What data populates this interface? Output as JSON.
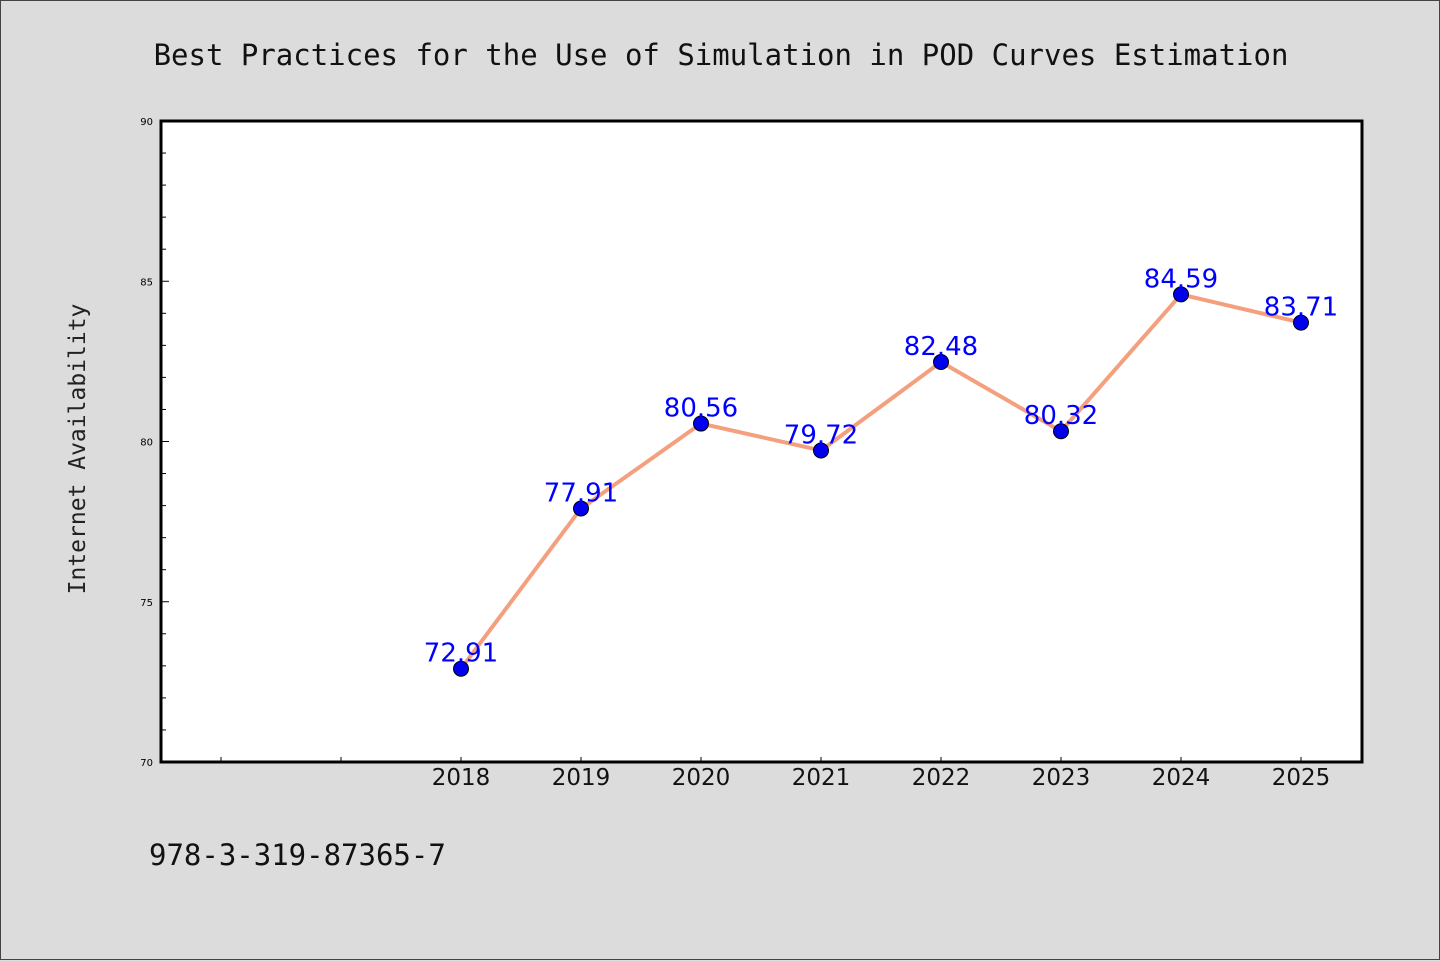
{
  "chart_data": {
    "type": "line",
    "title": "Best Practices for the Use of Simulation in POD Curves Estimation",
    "xlabel": "",
    "ylabel": "Internet Availability",
    "categories": [
      "2018",
      "2019",
      "2020",
      "2021",
      "2022",
      "2023",
      "2024",
      "2025"
    ],
    "series": [
      {
        "values": [
          72.91,
          77.91,
          80.56,
          79.72,
          82.48,
          80.32,
          84.59,
          83.71
        ],
        "data_labels": [
          "72.91",
          "77.91",
          "80.56",
          "79.72",
          "82.48",
          "80.32",
          "84.59",
          "83.71"
        ],
        "line_color": "#f4a07e",
        "marker_color": "#0000ee",
        "label_color": "#0000ff"
      }
    ],
    "ylim": [
      70,
      90
    ],
    "yticks": [
      70,
      75,
      80,
      85,
      90
    ],
    "ytick_labels": [
      "70",
      "75",
      "80",
      "85",
      "90"
    ],
    "grid": false,
    "legend": "none"
  },
  "footnote": "978-3-319-87365-7",
  "colors": {
    "background": "#dcdcdc",
    "plot_background": "#ffffff"
  }
}
